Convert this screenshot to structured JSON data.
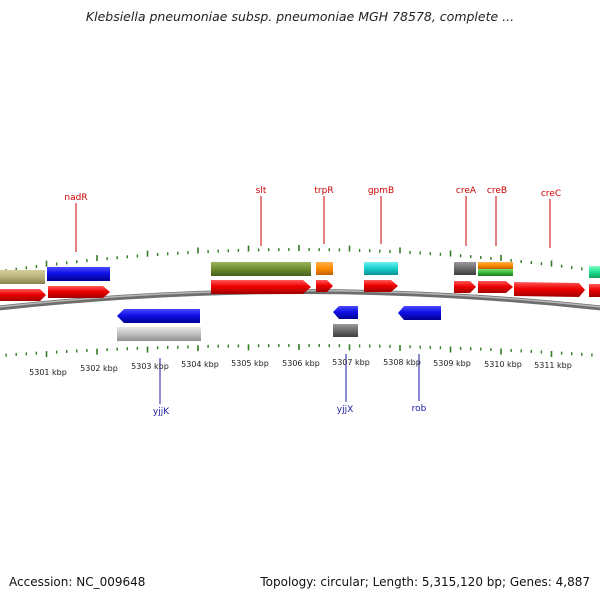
{
  "title": "Klebsiella pneumoniae subsp. pneumoniae MGH 78578, complete ...",
  "footer": {
    "accession": "Accession: NC_009648",
    "summary": "Topology: circular; Length: 5,315,120 bp; Genes: 4,887"
  },
  "colors": {
    "label_top": "#cc0000",
    "label_bottom": "#1a1aa8",
    "tick": "#2e7d20",
    "backbone": "#8a8a8a"
  },
  "scale": {
    "unit": "kbp",
    "labels": [
      "5301 kbp",
      "5302 kbp",
      "5303 kbp",
      "5304 kbp",
      "5305 kbp",
      "5306 kbp",
      "5307 kbp",
      "5308 kbp",
      "5309 kbp",
      "5310 kbp",
      "5311 kbp"
    ]
  },
  "genes_top": [
    {
      "name": "nadR",
      "color": "#cc0000"
    },
    {
      "name": "slt",
      "color": "#cc0000"
    },
    {
      "name": "trpR",
      "color": "#cc0000"
    },
    {
      "name": "gpmB",
      "color": "#cc0000"
    },
    {
      "name": "creA",
      "color": "#cc0000"
    },
    {
      "name": "creB",
      "color": "#cc0000"
    },
    {
      "name": "creC",
      "color": "#cc0000"
    }
  ],
  "genes_bottom": [
    {
      "name": "yjjK",
      "color": "#1a1aa8"
    },
    {
      "name": "yjjX",
      "color": "#1a1aa8"
    },
    {
      "name": "rob",
      "color": "#1a1aa8"
    }
  ]
}
